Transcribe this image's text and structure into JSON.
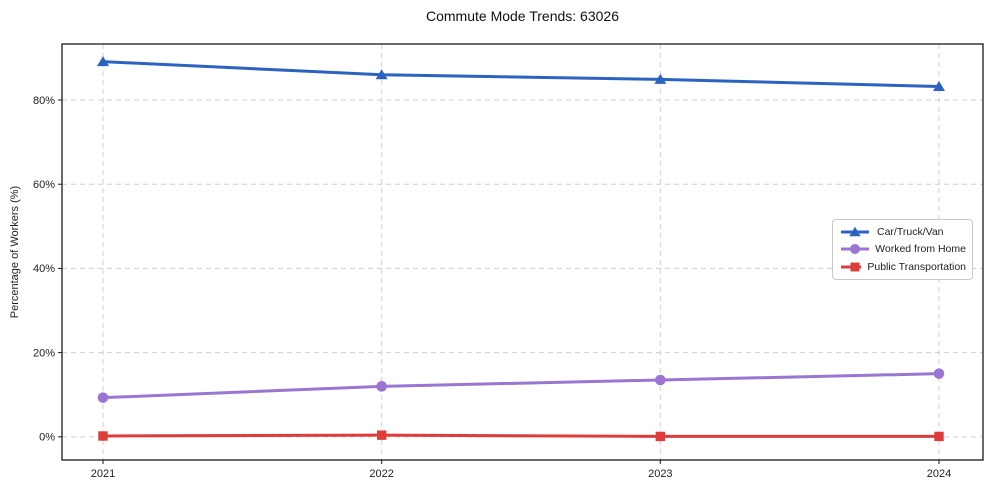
{
  "chart_data": {
    "type": "line",
    "title": "Commute Mode Trends: 63026",
    "xlabel": "",
    "ylabel": "Percentage of Workers (%)",
    "categories": [
      "2021",
      "2022",
      "2023",
      "2024"
    ],
    "series": [
      {
        "name": "Car/Truck/Van",
        "color": "#2c63c0",
        "marker": "triangle",
        "values": [
          89.1,
          86.0,
          84.9,
          83.2
        ]
      },
      {
        "name": "Worked from Home",
        "color": "#9a75d2",
        "marker": "circle",
        "values": [
          9.3,
          12.0,
          13.5,
          15.0
        ]
      },
      {
        "name": "Public Transportation",
        "color": "#de3b3b",
        "marker": "square",
        "values": [
          0.2,
          0.4,
          0.1,
          0.1
        ]
      }
    ],
    "y_ticks": [
      "0%",
      "20%",
      "40%",
      "60%",
      "80%"
    ],
    "y_tick_values": [
      0,
      20,
      40,
      60,
      80
    ],
    "ylim": [
      -5.5,
      93.3
    ],
    "grid": true,
    "legend_position": "right-center"
  },
  "colors": {
    "background": "#ffffff",
    "grid": "#cfcfcf",
    "axis": "#1a1a1a",
    "text": "#1f1f1f",
    "legend_border": "#c9c9c9"
  }
}
